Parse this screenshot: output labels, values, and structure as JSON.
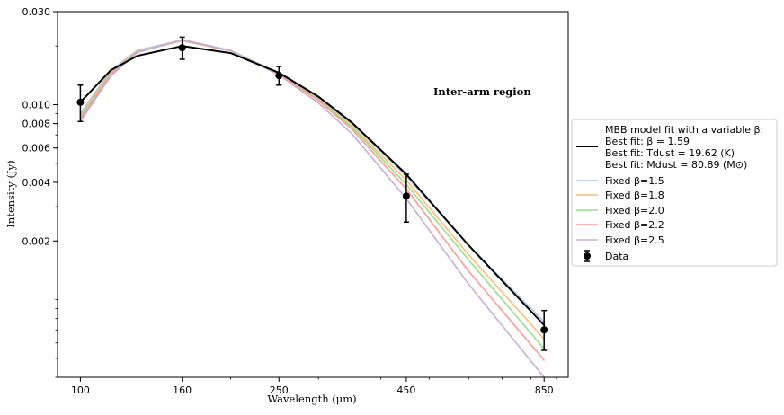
{
  "chart_data": {
    "type": "line",
    "xlabel": "Wavelength (μm)",
    "ylabel": "Intensity (Jy)",
    "xscale": "log",
    "yscale": "log",
    "xlim": [
      90,
      950
    ],
    "ylim": [
      0.0004,
      0.03
    ],
    "xticks": [
      {
        "value": 100,
        "label": "100"
      },
      {
        "value": 160,
        "label": "160"
      },
      {
        "value": 250,
        "label": "250"
      },
      {
        "value": 450,
        "label": "450"
      },
      {
        "value": 850,
        "label": "850"
      }
    ],
    "yticks": [
      {
        "value": 0.002,
        "label": "0.002"
      },
      {
        "value": 0.004,
        "label": "0.004"
      },
      {
        "value": 0.006,
        "label": "0.006"
      },
      {
        "value": 0.008,
        "label": "0.008"
      },
      {
        "value": 0.01,
        "label": "0.010"
      },
      {
        "value": 0.03,
        "label": "0.030"
      }
    ],
    "annotation": "Inter-arm region",
    "legend_position": "outside-right",
    "series": [
      {
        "name": "Fixed β=1.5",
        "color": "#aec7e8",
        "x": [
          100,
          115,
          130,
          160,
          200,
          250,
          300,
          350,
          450,
          600,
          850
        ],
        "values": [
          0.009,
          0.015,
          0.019,
          0.0215,
          0.019,
          0.0145,
          0.0108,
          0.008,
          0.0043,
          0.0019,
          0.00077
        ]
      },
      {
        "name": "Fixed β=1.8",
        "color": "#ffbb78",
        "x": [
          100,
          115,
          130,
          160,
          200,
          250,
          300,
          350,
          450,
          600,
          850
        ],
        "values": [
          0.0088,
          0.0147,
          0.0188,
          0.0213,
          0.0189,
          0.0145,
          0.0107,
          0.0078,
          0.0041,
          0.0017,
          0.00063
        ]
      },
      {
        "name": "Fixed β=2.0",
        "color": "#98df8a",
        "x": [
          100,
          115,
          130,
          160,
          200,
          250,
          300,
          350,
          450,
          600,
          850
        ],
        "values": [
          0.0086,
          0.0145,
          0.0187,
          0.0213,
          0.0189,
          0.0145,
          0.0106,
          0.0077,
          0.0039,
          0.0016,
          0.00056
        ]
      },
      {
        "name": "Fixed β=2.2",
        "color": "#ff9896",
        "x": [
          100,
          115,
          130,
          160,
          200,
          250,
          300,
          350,
          450,
          600,
          850
        ],
        "values": [
          0.0084,
          0.0143,
          0.0186,
          0.0214,
          0.0189,
          0.0144,
          0.0105,
          0.0075,
          0.0037,
          0.0014,
          0.00049
        ]
      },
      {
        "name": "Fixed β=2.5",
        "color": "#c5b0d5",
        "x": [
          100,
          115,
          130,
          160,
          200,
          250,
          300,
          350,
          450,
          600,
          850
        ],
        "values": [
          0.0082,
          0.014,
          0.0185,
          0.0216,
          0.019,
          0.0142,
          0.0102,
          0.0071,
          0.0033,
          0.0012,
          0.0004
        ]
      },
      {
        "name": "MBB model fit with a variable β:",
        "color": "#000000",
        "x": [
          100,
          115,
          130,
          160,
          200,
          250,
          300,
          350,
          450,
          600,
          850
        ],
        "values": [
          0.0103,
          0.015,
          0.0178,
          0.02,
          0.0184,
          0.0146,
          0.011,
          0.0081,
          0.0044,
          0.0019,
          0.00074
        ]
      }
    ],
    "data_points": {
      "name": "Data",
      "color": "#000000",
      "x": [
        100,
        160,
        250,
        450,
        850
      ],
      "values": [
        0.0103,
        0.0196,
        0.0141,
        0.0034,
        0.0007
      ],
      "err_low": [
        0.0082,
        0.0171,
        0.0126,
        0.0025,
        0.00055
      ],
      "err_high": [
        0.0126,
        0.0222,
        0.0157,
        0.0044,
        0.00088
      ]
    },
    "legend": {
      "fit_lines": [
        "MBB model fit with a variable β:",
        "Best fit: β = 1.59",
        "Best fit: Tdust = 19.62 (K)",
        "Best fit: Mdust = 80.89 (M⊙)"
      ],
      "fixed_items": [
        "Fixed β=1.5",
        "Fixed β=1.8",
        "Fixed β=2.0",
        "Fixed β=2.2",
        "Fixed β=2.5"
      ],
      "data_label": "Data"
    }
  }
}
